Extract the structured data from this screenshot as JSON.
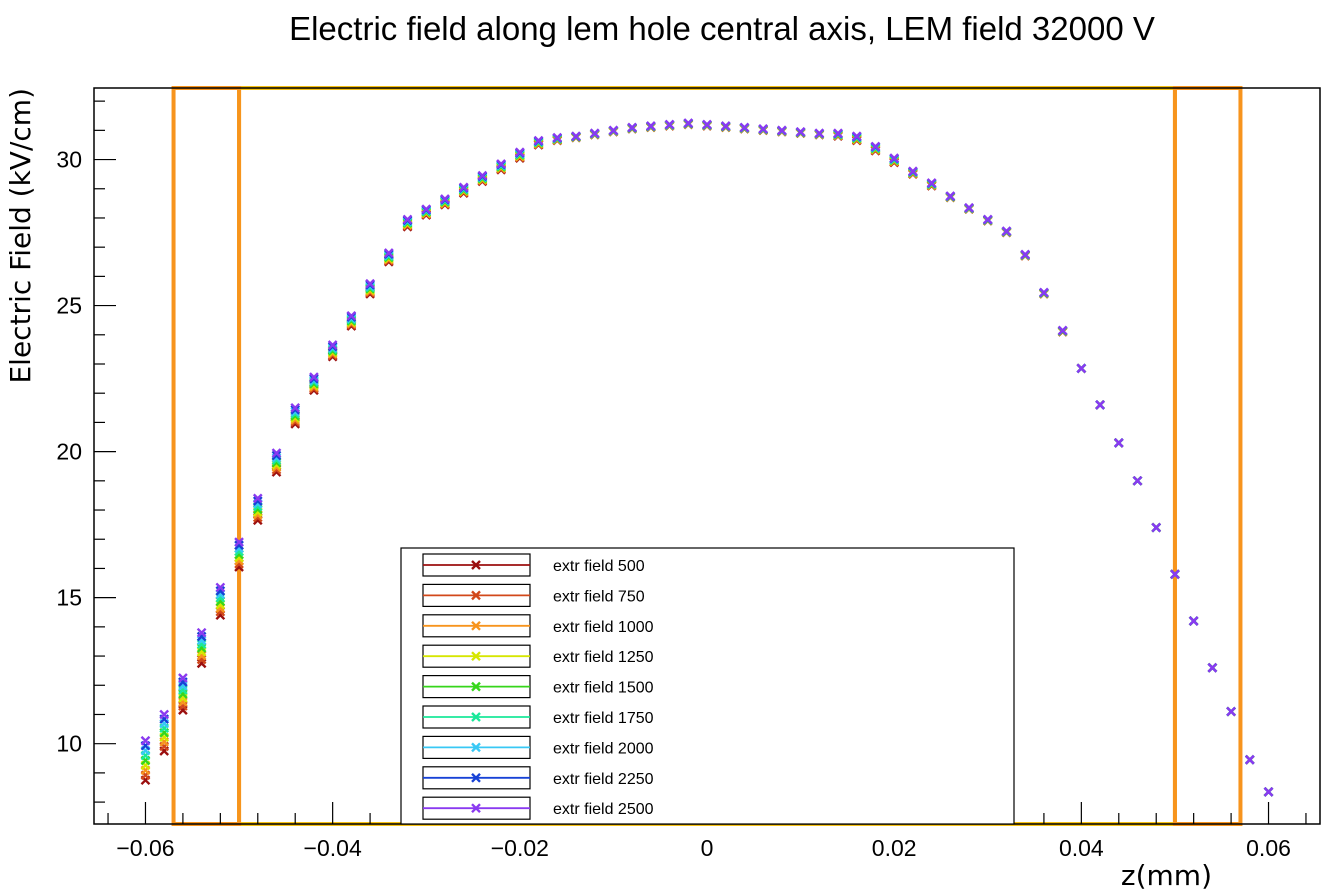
{
  "chart_data": {
    "type": "scatter",
    "title": "Electric field along lem hole central axis, LEM field 32000 V",
    "xlabel": "z(mm)",
    "ylabel": "Electric Field (kV/cm)",
    "xlim": [
      -0.0655,
      0.0655
    ],
    "ylim": [
      7.25,
      32.45
    ],
    "xticks": [
      -0.06,
      -0.04,
      -0.02,
      0,
      0.02,
      0.04,
      0.06
    ],
    "xtick_labels": [
      "−0.06",
      "−0.04",
      "−0.02",
      "0",
      "0.02",
      "0.04",
      "0.06"
    ],
    "yticks": [
      10,
      15,
      20,
      25,
      30
    ],
    "ytick_labels": [
      "10",
      "15",
      "20",
      "25",
      "30"
    ],
    "grid": false,
    "legend_position": "bottom-center",
    "marker": "x",
    "x": [
      -0.06,
      -0.058,
      -0.056,
      -0.054,
      -0.052,
      -0.05,
      -0.048,
      -0.046,
      -0.044,
      -0.042,
      -0.04,
      -0.038,
      -0.036,
      -0.034,
      -0.032,
      -0.03,
      -0.028,
      -0.026,
      -0.024,
      -0.022,
      -0.02,
      -0.018,
      -0.016,
      -0.014,
      -0.012,
      -0.01,
      -0.008,
      -0.006,
      -0.004,
      -0.002,
      0.0,
      0.002,
      0.004,
      0.006,
      0.008,
      0.01,
      0.012,
      0.014,
      0.016,
      0.018,
      0.02,
      0.022,
      0.024,
      0.026,
      0.028,
      0.03,
      0.032,
      0.034,
      0.036,
      0.038,
      0.04,
      0.042,
      0.044,
      0.046,
      0.048,
      0.05,
      0.052,
      0.054,
      0.056,
      0.058,
      0.06
    ],
    "base": [
      8.75,
      9.75,
      11.15,
      12.75,
      14.4,
      16.05,
      17.65,
      19.3,
      20.95,
      22.1,
      23.25,
      24.3,
      25.4,
      26.5,
      27.7,
      28.1,
      28.45,
      28.85,
      29.25,
      29.65,
      30.05,
      30.5,
      30.65,
      30.75,
      30.85,
      30.95,
      31.05,
      31.1,
      31.15,
      31.2,
      31.15,
      31.1,
      31.05,
      31.0,
      30.95,
      30.9,
      30.85,
      30.8,
      30.65,
      30.3,
      29.9,
      29.5,
      29.1,
      28.7,
      28.3,
      27.9,
      27.5,
      26.7,
      25.4,
      24.1,
      22.85,
      21.6,
      20.3,
      19.0,
      17.4,
      15.8,
      14.2,
      12.6,
      11.1,
      9.45,
      8.35
    ],
    "spread": [
      1.35,
      1.25,
      1.1,
      1.05,
      0.95,
      0.85,
      0.75,
      0.65,
      0.55,
      0.45,
      0.4,
      0.35,
      0.35,
      0.3,
      0.25,
      0.2,
      0.2,
      0.2,
      0.2,
      0.2,
      0.2,
      0.15,
      0.1,
      0.05,
      0.05,
      0.05,
      0.05,
      0.05,
      0.05,
      0.05,
      0.05,
      0.05,
      0.05,
      0.05,
      0.05,
      0.05,
      0.05,
      0.1,
      0.15,
      0.15,
      0.15,
      0.1,
      0.1,
      0.05,
      0.05,
      0.05,
      0.05,
      0.05,
      0.05,
      0.05,
      0.0,
      0.0,
      0.0,
      0.0,
      0.0,
      0.0,
      0.0,
      0.0,
      0.0,
      0.0,
      0.0
    ],
    "series": [
      {
        "name": "extr field 500",
        "color": "#9b0f0f",
        "index": 0
      },
      {
        "name": "extr field 750",
        "color": "#d2481a",
        "index": 1
      },
      {
        "name": "extr field 1000",
        "color": "#f7941d",
        "index": 2
      },
      {
        "name": "extr field 1250",
        "color": "#d6e600",
        "index": 3
      },
      {
        "name": "extr field 1500",
        "color": "#36d61a",
        "index": 4
      },
      {
        "name": "extr field 1750",
        "color": "#1ae89a",
        "index": 5
      },
      {
        "name": "extr field 2000",
        "color": "#38c8f5",
        "index": 6
      },
      {
        "name": "extr field 2250",
        "color": "#1742d6",
        "index": 7
      },
      {
        "name": "extr field 2500",
        "color": "#8a3af0",
        "index": 8
      }
    ],
    "regions": [
      {
        "x0": -0.057,
        "x1": -0.05,
        "y0": 7.25,
        "y1": 32.45,
        "color": "#f7941d"
      },
      {
        "x0": -0.05,
        "x1": 0.05,
        "y0": 7.25,
        "y1": 32.45,
        "color": "#f5c014"
      },
      {
        "x0": 0.05,
        "x1": 0.057,
        "y0": 7.25,
        "y1": 32.45,
        "color": "#f7941d"
      }
    ]
  }
}
